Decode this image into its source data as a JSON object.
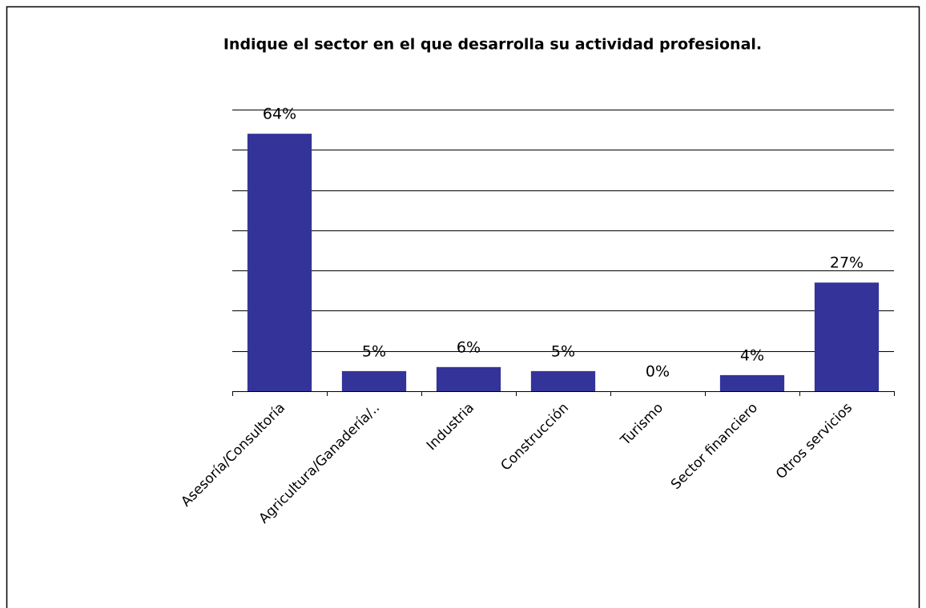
{
  "chart_data": {
    "type": "bar",
    "title": "Indique el sector en el que desarrolla su actividad profesional.",
    "categories": [
      "Asesoría/Consultoría",
      "Agricultura/Ganadería/..",
      "Industria",
      "Construcción",
      "Turismo",
      "Sector financiero",
      "Otros servicios"
    ],
    "values": [
      64,
      5,
      6,
      5,
      0,
      4,
      27
    ],
    "value_labels": [
      "64%",
      "5%",
      "6%",
      "5%",
      "0%",
      "4%",
      "27%"
    ],
    "color": "#333399",
    "ylim": [
      0,
      70
    ],
    "yticks": [
      0,
      10,
      20,
      30,
      40,
      50,
      60,
      70
    ],
    "grid": true
  }
}
